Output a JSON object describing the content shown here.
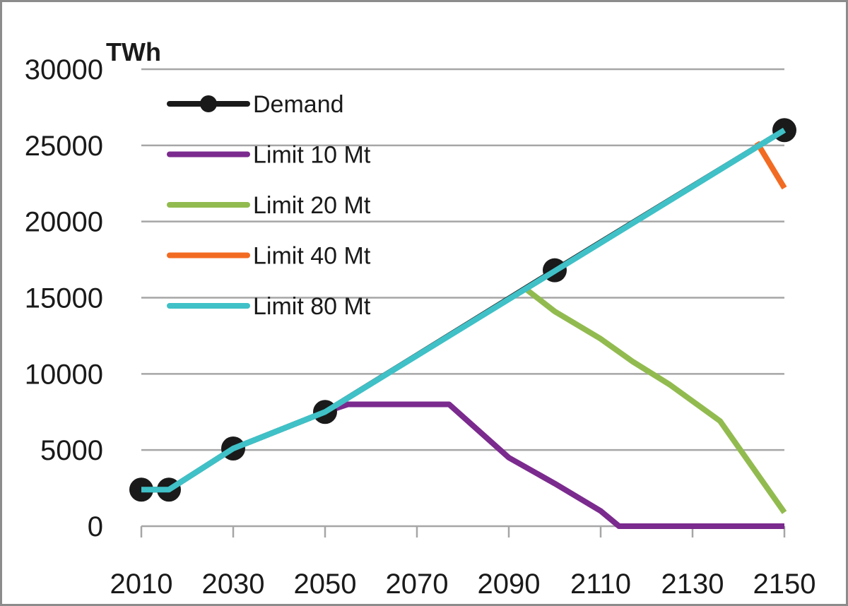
{
  "chart_data": {
    "type": "line",
    "ylabel": "TWh",
    "xlim": [
      2010,
      2150
    ],
    "ylim": [
      0,
      30000
    ],
    "x_ticks": [
      2010,
      2030,
      2050,
      2070,
      2090,
      2110,
      2130,
      2150
    ],
    "y_ticks": [
      0,
      5000,
      10000,
      15000,
      20000,
      25000,
      30000
    ],
    "grid": "horizontal",
    "legend_position": "top-left",
    "series": [
      {
        "name": "Demand",
        "color": "#1a1a1a",
        "markers": true,
        "points": [
          [
            2010,
            2400
          ],
          [
            2016,
            2400
          ],
          [
            2030,
            5100
          ],
          [
            2050,
            7500
          ],
          [
            2100,
            16800
          ],
          [
            2150,
            26000
          ]
        ]
      },
      {
        "name": "Limit 10 Mt",
        "color": "#7b2a8e",
        "markers": false,
        "points": [
          [
            2050,
            7500
          ],
          [
            2055,
            8000
          ],
          [
            2077,
            8000
          ],
          [
            2090,
            4500
          ],
          [
            2100,
            2800
          ],
          [
            2110,
            1000
          ],
          [
            2114,
            0
          ],
          [
            2150,
            0
          ]
        ]
      },
      {
        "name": "Limit 20 Mt",
        "color": "#92bb4f",
        "markers": false,
        "points": [
          [
            2094,
            15500
          ],
          [
            2100,
            14100
          ],
          [
            2110,
            12300
          ],
          [
            2117,
            10800
          ],
          [
            2125,
            9300
          ],
          [
            2136,
            6900
          ],
          [
            2150,
            900
          ]
        ]
      },
      {
        "name": "Limit 40 Mt",
        "color": "#f26b22",
        "markers": false,
        "points": [
          [
            2144,
            25200
          ],
          [
            2150,
            22200
          ]
        ]
      },
      {
        "name": "Limit 80 Mt",
        "color": "#3fc1c7",
        "markers": false,
        "points": [
          [
            2010,
            2400
          ],
          [
            2016,
            2400
          ],
          [
            2030,
            5100
          ],
          [
            2050,
            7500
          ],
          [
            2150,
            26000
          ]
        ]
      }
    ]
  }
}
